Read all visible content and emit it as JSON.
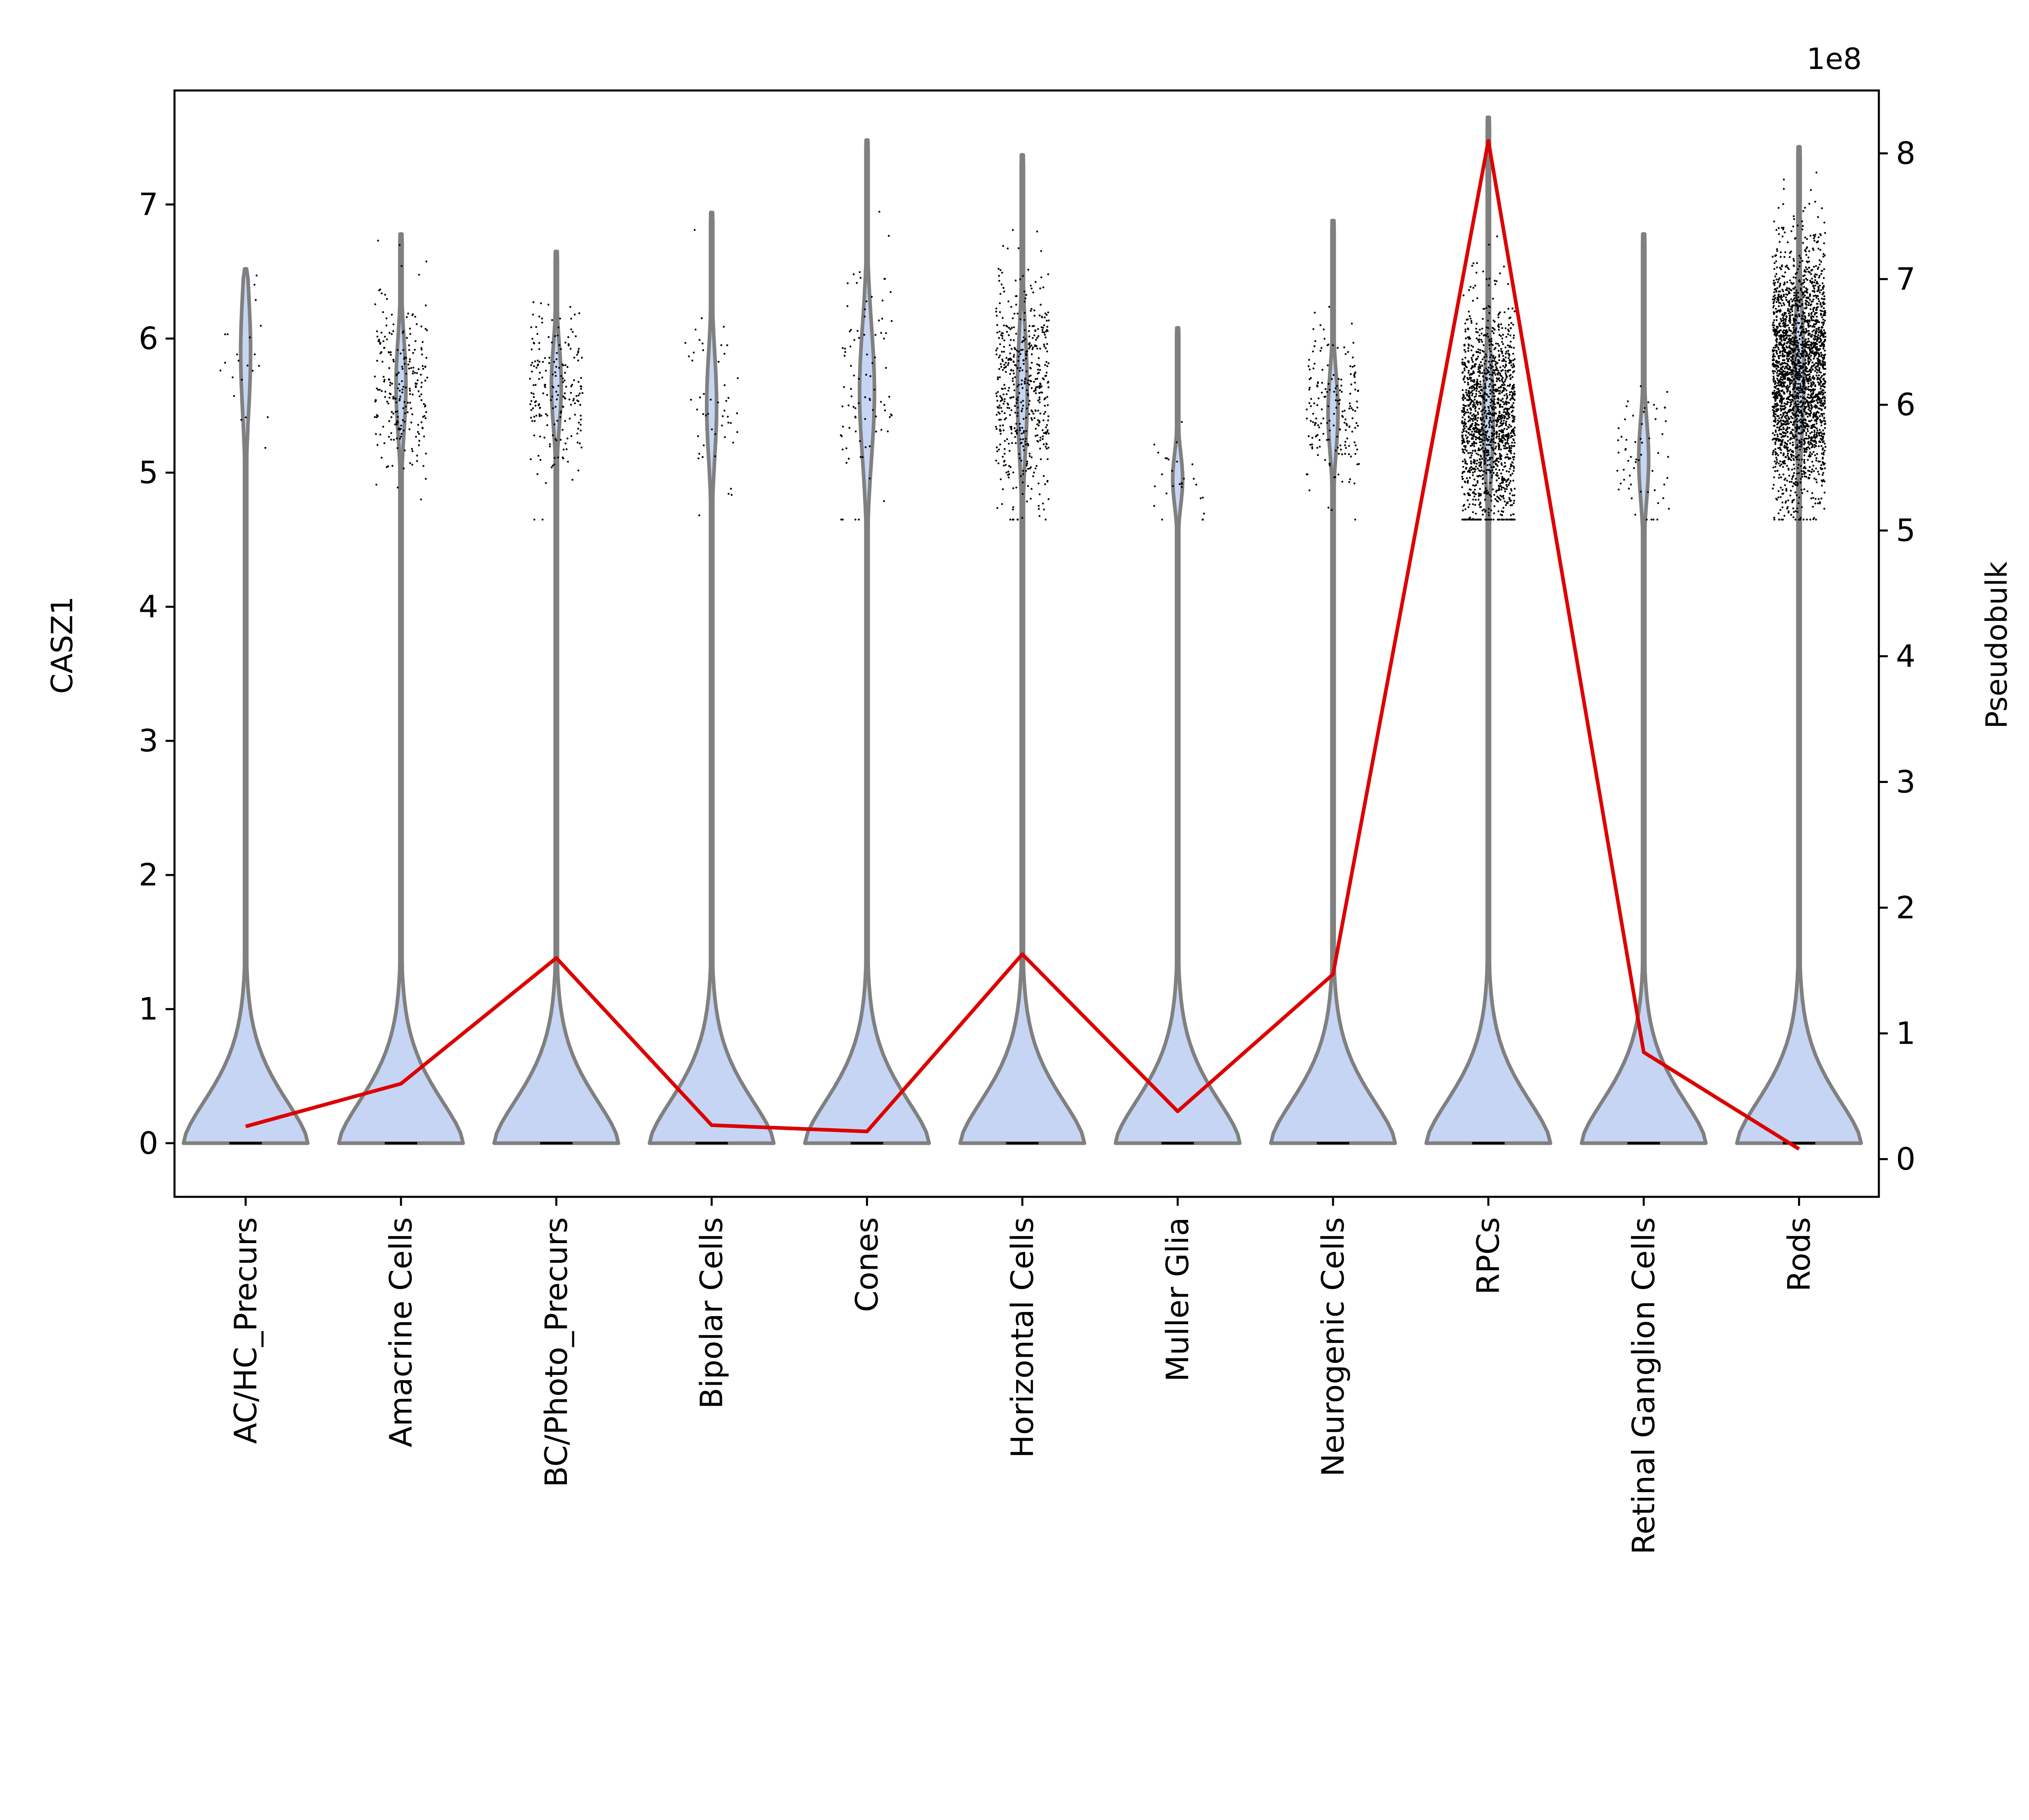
{
  "chart_data": {
    "type": "violin",
    "categories": [
      "AC/HC_Precurs",
      "Amacrine Cells",
      "BC/Photo_Precurs",
      "Bipolar Cells",
      "Cones",
      "Horizontal Cells",
      "Muller Glia",
      "Neurogenic Cells",
      "RPCs",
      "Retinal Ganglion Cells",
      "Rods"
    ],
    "ylabel": "CASZ1",
    "y2label": "Pseudobulk",
    "y2_offset_text": "1e8",
    "ylim": [
      -0.4,
      7.85
    ],
    "y2lim": [
      -0.3,
      8.5
    ],
    "yticks": [
      0,
      1,
      2,
      3,
      4,
      5,
      6,
      7
    ],
    "y2ticks": [
      0,
      1,
      2,
      3,
      4,
      5,
      6,
      7,
      8
    ],
    "violins": [
      {
        "category": "AC/HC_Precurs",
        "max": 6.52,
        "base_halfwidth": 0.4,
        "dot_count": 22,
        "dot_center": 5.9,
        "dot_spread": 0.45
      },
      {
        "category": "Amacrine Cells",
        "max": 6.78,
        "base_halfwidth": 0.4,
        "dot_count": 240,
        "dot_center": 5.65,
        "dot_spread": 0.35
      },
      {
        "category": "BC/Photo_Precurs",
        "max": 6.65,
        "base_halfwidth": 0.4,
        "dot_count": 200,
        "dot_center": 5.65,
        "dot_spread": 0.3
      },
      {
        "category": "Bipolar Cells",
        "max": 6.94,
        "base_halfwidth": 0.4,
        "dot_count": 50,
        "dot_center": 5.5,
        "dot_spread": 0.4
      },
      {
        "category": "Cones",
        "max": 7.48,
        "base_halfwidth": 0.4,
        "dot_count": 90,
        "dot_center": 5.6,
        "dot_spread": 0.55
      },
      {
        "category": "Horizontal Cells",
        "max": 7.37,
        "base_halfwidth": 0.4,
        "dot_count": 520,
        "dot_center": 5.6,
        "dot_spread": 0.45
      },
      {
        "category": "Muller Glia",
        "max": 6.08,
        "base_halfwidth": 0.4,
        "dot_count": 28,
        "dot_center": 4.95,
        "dot_spread": 0.2
      },
      {
        "category": "Neurogenic Cells",
        "max": 6.88,
        "base_halfwidth": 0.4,
        "dot_count": 180,
        "dot_center": 5.45,
        "dot_spread": 0.3
      },
      {
        "category": "RPCs",
        "max": 7.65,
        "base_halfwidth": 0.4,
        "dot_count": 1500,
        "dot_center": 5.4,
        "dot_spread": 0.4
      },
      {
        "category": "Retinal Ganglion Cells",
        "max": 6.78,
        "base_halfwidth": 0.4,
        "dot_count": 60,
        "dot_center": 5.1,
        "dot_spread": 0.3
      },
      {
        "category": "Rods",
        "max": 7.43,
        "base_halfwidth": 0.4,
        "dot_count": 2500,
        "dot_center": 5.75,
        "dot_spread": 0.45
      }
    ],
    "series": [
      {
        "axis": "right",
        "color": "#dd0000",
        "values": [
          0.26,
          0.6,
          1.6,
          0.27,
          0.22,
          1.63,
          0.38,
          1.47,
          8.1,
          0.85,
          0.08
        ]
      }
    ],
    "colors": {
      "violin_fill": "#c6d5f3",
      "violin_edge": "#808080",
      "line": "#dd0000",
      "dots": "#000000"
    },
    "grid": false
  }
}
